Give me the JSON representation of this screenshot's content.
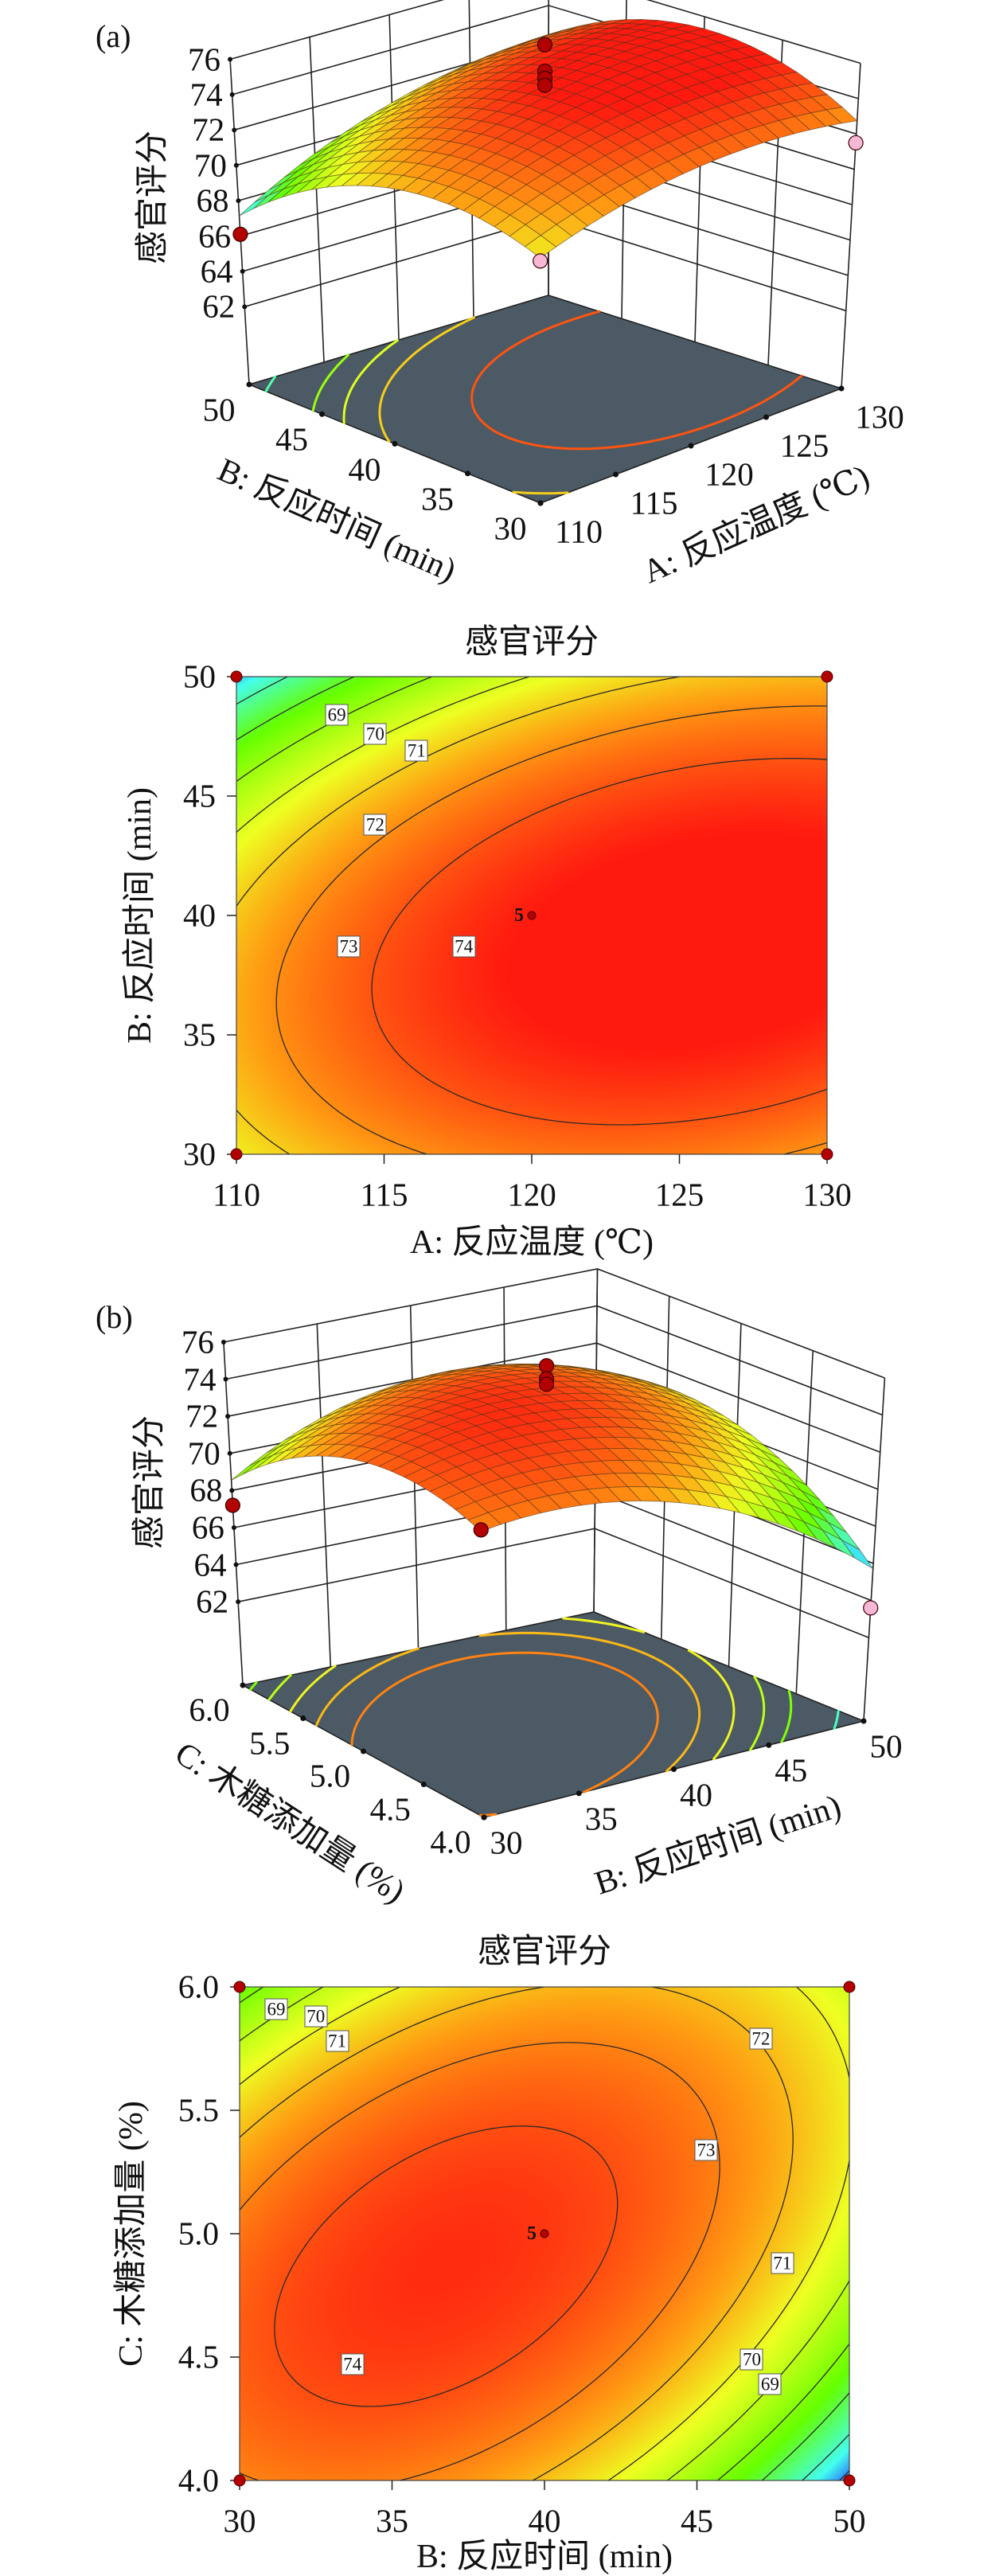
{
  "colormap": [
    {
      "t": 0.0,
      "c": "#2040ff"
    },
    {
      "t": 0.12,
      "c": "#44ffee"
    },
    {
      "t": 0.32,
      "c": "#66ff00"
    },
    {
      "t": 0.56,
      "c": "#eeff22"
    },
    {
      "t": 0.74,
      "c": "#ff9a12"
    },
    {
      "t": 1.0,
      "c": "#ff1a10"
    }
  ],
  "chart_data": [
    {
      "type": "surface3d",
      "panel": "(a)",
      "zlabel": "感官评分",
      "xlabel": "A: 反应温度 (℃)",
      "ylabel": "B: 反应时间 (min)",
      "xlim": [
        110,
        130
      ],
      "ylim": [
        30,
        50
      ],
      "zlim": [
        62,
        76
      ],
      "x_ticks": [
        110,
        115,
        120,
        125,
        130
      ],
      "y_ticks": [
        30,
        35,
        40,
        45,
        50
      ],
      "z_ticks": [
        62,
        64,
        66,
        68,
        70,
        72,
        74,
        76
      ],
      "grid": {
        "x": [
          110,
          120,
          130
        ],
        "y": [
          30,
          40,
          50
        ],
        "z": [
          [
            71.3,
            73.3,
            73.0
          ],
          [
            72.6,
            74.8,
            75.0
          ],
          [
            66.8,
            71.3,
            72.4
          ]
        ]
      },
      "color_range": [
        66.5,
        75.0
      ],
      "floor_color": "#4b5a64",
      "floor_contour_levels": [
        68,
        70,
        71,
        72,
        74
      ],
      "point_colors": {
        "above": "#b30000",
        "below": "#f6b8d4"
      },
      "design_points": [
        {
          "x": 110,
          "y": 50,
          "z": 66.1,
          "position": "above"
        },
        {
          "x": 130,
          "y": 30,
          "z": 71.5,
          "position": "below"
        },
        {
          "x": 110,
          "y": 30,
          "z": 71.3,
          "position": "below"
        },
        {
          "x": 120,
          "y": 40,
          "z": 77.3,
          "position": "above"
        },
        {
          "x": 120,
          "y": 40,
          "z": 75.8,
          "position": "above"
        },
        {
          "x": 120,
          "y": 40,
          "z": 75.4,
          "position": "above"
        },
        {
          "x": 120,
          "y": 40,
          "z": 75.0,
          "position": "above"
        }
      ]
    },
    {
      "type": "contour",
      "title": "感官评分",
      "xlabel": "A: 反应温度 (℃)",
      "ylabel": "B: 反应时间 (min)",
      "xlim": [
        110,
        130
      ],
      "ylim": [
        30,
        50
      ],
      "x_ticks": [
        110,
        115,
        120,
        125,
        130
      ],
      "y_ticks": [
        30,
        35,
        40,
        45,
        50
      ],
      "grid": {
        "x": [
          110,
          120,
          130
        ],
        "y": [
          30,
          40,
          50
        ],
        "z": [
          [
            71.3,
            73.3,
            73.0
          ],
          [
            72.6,
            74.8,
            75.0
          ],
          [
            66.8,
            71.3,
            72.4
          ]
        ]
      },
      "color_range": [
        66.5,
        75.0
      ],
      "levels": [
        68,
        69,
        70,
        71,
        72,
        73,
        74
      ],
      "labels": [
        {
          "text": "69",
          "x": 113.4,
          "y": 48.4
        },
        {
          "text": "70",
          "x": 114.7,
          "y": 47.6
        },
        {
          "text": "71",
          "x": 116.1,
          "y": 46.9
        },
        {
          "text": "72",
          "x": 114.7,
          "y": 43.8
        },
        {
          "text": "73",
          "x": 113.8,
          "y": 38.7
        },
        {
          "text": "74",
          "x": 117.7,
          "y": 38.7
        }
      ],
      "center_point": {
        "x": 120,
        "y": 40,
        "label": "5"
      },
      "corner_points": [
        [
          110,
          30
        ],
        [
          110,
          50
        ],
        [
          130,
          30
        ],
        [
          130,
          50
        ]
      ]
    },
    {
      "type": "surface3d",
      "panel": "(b)",
      "zlabel": "感官评分",
      "xlabel": "B: 反应时间 (min)",
      "ylabel": "C: 木糖添加量 (%)",
      "xlim": [
        30,
        50
      ],
      "ylim": [
        4.0,
        6.0
      ],
      "zlim": [
        62,
        76
      ],
      "x_ticks": [
        30,
        35,
        40,
        45,
        50
      ],
      "y_ticks": [
        "4.0",
        "4.5",
        "5.0",
        "5.5",
        "6.0"
      ],
      "z_ticks": [
        62,
        64,
        66,
        68,
        70,
        72,
        74,
        76
      ],
      "grid": {
        "x": [
          30,
          40,
          50
        ],
        "y": [
          4,
          5,
          6
        ],
        "z": [
          [
            72.9,
            72.1,
            65.5
          ],
          [
            73.1,
            74.3,
            70.8
          ],
          [
            68.7,
            71.9,
            70.3
          ]
        ]
      },
      "color_range": [
        65.5,
        75.0
      ],
      "floor_color": "#4b5a64",
      "floor_contour_levels": [
        67,
        69,
        70,
        71,
        72,
        73
      ],
      "point_colors": {
        "above": "#b30000",
        "below": "#f6b8d4"
      },
      "design_points": [
        {
          "x": 30,
          "y": 6,
          "z": 67.2,
          "position": "above"
        },
        {
          "x": 30,
          "y": 4,
          "z": 73.0,
          "position": "above"
        },
        {
          "x": 50,
          "y": 4,
          "z": 63.6,
          "position": "below"
        },
        {
          "x": 40,
          "y": 5,
          "z": 76.0,
          "position": "above"
        },
        {
          "x": 40,
          "y": 5,
          "z": 75.3,
          "position": "above"
        },
        {
          "x": 40,
          "y": 5,
          "z": 75.0,
          "position": "above"
        }
      ]
    },
    {
      "type": "contour",
      "title": "感官评分",
      "xlabel": "B: 反应时间 (min)",
      "ylabel": "C: 木糖添加量 (%)",
      "xlim": [
        30,
        50
      ],
      "ylim": [
        4.0,
        6.0
      ],
      "x_ticks": [
        30,
        35,
        40,
        45,
        50
      ],
      "y_ticks": [
        "4.0",
        "4.5",
        "5.0",
        "5.5",
        "6.0"
      ],
      "grid": {
        "x": [
          30,
          40,
          50
        ],
        "y": [
          4,
          5,
          6
        ],
        "z": [
          [
            72.9,
            72.1,
            65.5
          ],
          [
            73.1,
            74.3,
            70.8
          ],
          [
            68.7,
            71.9,
            70.3
          ]
        ]
      },
      "color_range": [
        65.5,
        75.0
      ],
      "levels": [
        66,
        67,
        68,
        69,
        70,
        71,
        72,
        73,
        74
      ],
      "labels": [
        {
          "text": "69",
          "x": 31.2,
          "y": 5.91
        },
        {
          "text": "70",
          "x": 32.5,
          "y": 5.88
        },
        {
          "text": "71",
          "x": 33.2,
          "y": 5.78
        },
        {
          "text": "72",
          "x": 47.1,
          "y": 5.79
        },
        {
          "text": "73",
          "x": 45.3,
          "y": 5.34
        },
        {
          "text": "71",
          "x": 47.8,
          "y": 4.88
        },
        {
          "text": "70",
          "x": 46.8,
          "y": 4.49
        },
        {
          "text": "69",
          "x": 47.4,
          "y": 4.39
        },
        {
          "text": "74",
          "x": 33.7,
          "y": 4.47
        }
      ],
      "center_point": {
        "x": 40,
        "y": 5,
        "label": "5"
      },
      "corner_points": [
        [
          30,
          4
        ],
        [
          30,
          6
        ],
        [
          50,
          4
        ],
        [
          50,
          6
        ]
      ]
    }
  ]
}
